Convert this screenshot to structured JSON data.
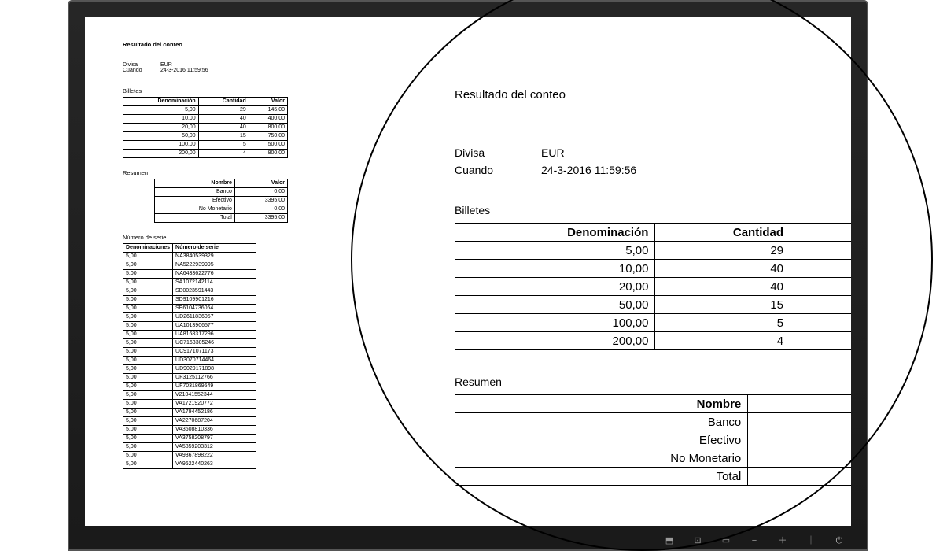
{
  "report": {
    "title": "Resultado del conteo",
    "meta": {
      "currency_label": "Divisa",
      "currency_value": "EUR",
      "when_label": "Cuando",
      "when_value": "24-3-2016 11:59:56"
    },
    "banknotes": {
      "section": "Billetes",
      "columns": [
        "Denominación",
        "Cantidad",
        "Valor"
      ],
      "rows": [
        [
          "5,00",
          "29",
          "145,00"
        ],
        [
          "10,00",
          "40",
          "400,00"
        ],
        [
          "20,00",
          "40",
          "800,00"
        ],
        [
          "50,00",
          "15",
          "750,00"
        ],
        [
          "100,00",
          "5",
          "500,00"
        ],
        [
          "200,00",
          "4",
          "800,00"
        ]
      ]
    },
    "summary": {
      "section": "Resumen",
      "columns": [
        "Nombre",
        "Valor"
      ],
      "rows": [
        [
          "Banco",
          "0,00"
        ],
        [
          "Efectivo",
          "3395,00"
        ],
        [
          "No Monetario",
          "0,00"
        ],
        [
          "Total",
          "3395,00"
        ]
      ]
    },
    "serials": {
      "section": "Número de serie",
      "columns": [
        "Denominaciones",
        "Número de serie"
      ],
      "rows": [
        [
          "5,00",
          "NA3840539329"
        ],
        [
          "5,00",
          "NA5222939995"
        ],
        [
          "5,00",
          "NA6433622776"
        ],
        [
          "5,00",
          "SA1072142114"
        ],
        [
          "5,00",
          "SB0023591443"
        ],
        [
          "5,00",
          "SD9109901216"
        ],
        [
          "5,00",
          "SE6104736064"
        ],
        [
          "5,00",
          "UD2611836057"
        ],
        [
          "5,00",
          "UA1013906577"
        ],
        [
          "5,00",
          "UA8168317296"
        ],
        [
          "5,00",
          "UC7163305246"
        ],
        [
          "5,00",
          "UC9171071173"
        ],
        [
          "5,00",
          "UD3070714464"
        ],
        [
          "5,00",
          "UD9029171898"
        ],
        [
          "5,00",
          "UF3125112766"
        ],
        [
          "5,00",
          "UF7031869549"
        ],
        [
          "5,00",
          "V21041552344"
        ],
        [
          "5,00",
          "VA1721920772"
        ],
        [
          "5,00",
          "VA1794452186"
        ],
        [
          "5,00",
          "VA2270687204"
        ],
        [
          "5,00",
          "VA3608810336"
        ],
        [
          "5,00",
          "VA3758208797"
        ],
        [
          "5,00",
          "VA5859203312"
        ],
        [
          "5,00",
          "VA9367898222"
        ],
        [
          "5,00",
          "VA9622440263"
        ]
      ]
    }
  },
  "magnified_summary_rows": [
    [
      "Banco",
      "0,"
    ],
    [
      "Efectivo",
      "3"
    ],
    [
      "No Monetario",
      ""
    ],
    [
      "Total",
      ""
    ]
  ],
  "monitor_buttons": [
    "⬒",
    "⊡",
    "▭",
    "−",
    "＋",
    "｜",
    "⏻"
  ]
}
